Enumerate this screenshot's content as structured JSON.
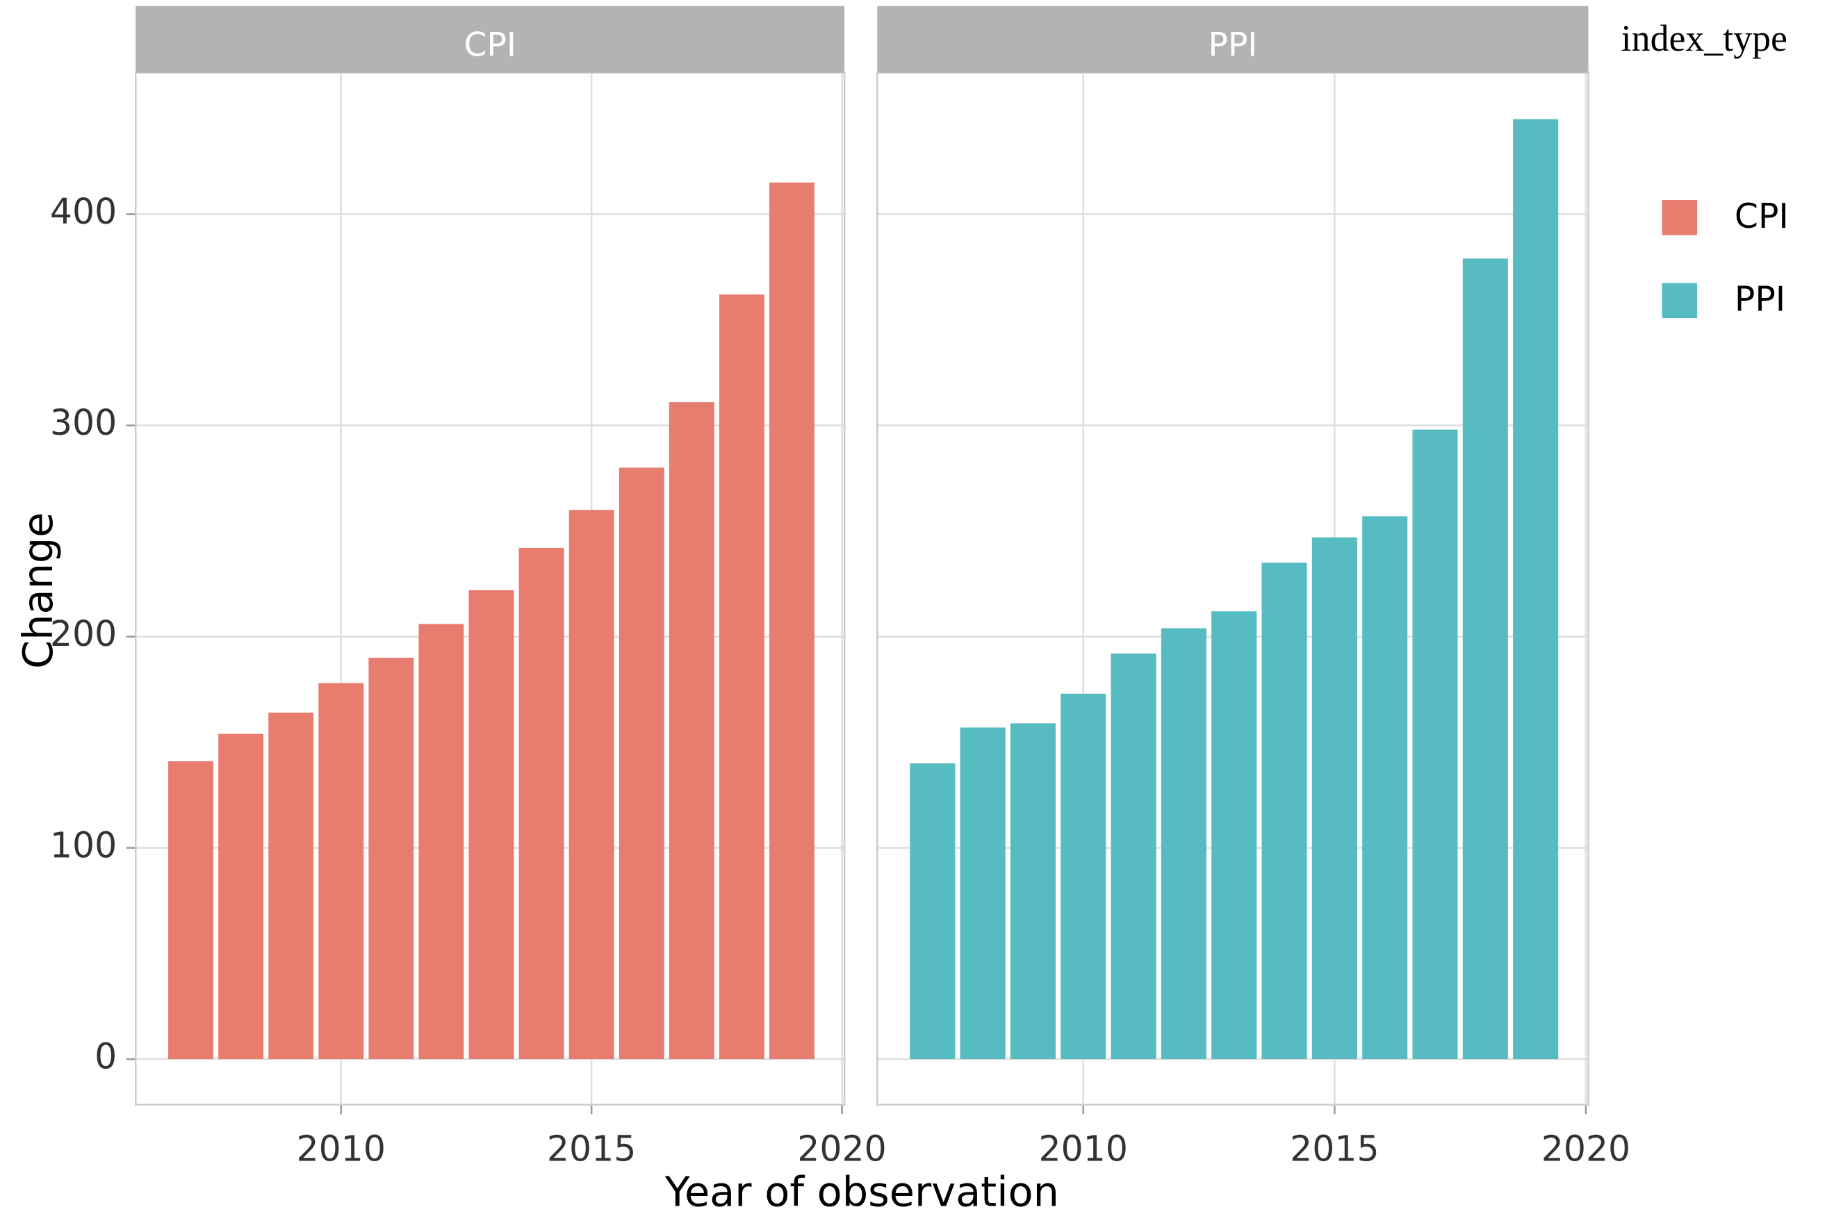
{
  "chart_data": {
    "type": "bar",
    "x_label": "Year of observation",
    "y_label": "Change",
    "legend_title": "index_type",
    "x": [
      2007,
      2008,
      2009,
      2010,
      2011,
      2012,
      2013,
      2014,
      2015,
      2016,
      2017,
      2018,
      2019
    ],
    "series": [
      {
        "name": "CPI",
        "color": "#e77c6f",
        "values": [
          141,
          154,
          164,
          178,
          190,
          206,
          222,
          242,
          260,
          280,
          311,
          362,
          415
        ]
      },
      {
        "name": "PPI",
        "color": "#56bcc2",
        "values": [
          140,
          157,
          159,
          173,
          192,
          204,
          212,
          235,
          247,
          257,
          298,
          379,
          445
        ]
      }
    ],
    "xlim": [
      2005.9,
      2020.05
    ],
    "xticks": [
      2010,
      2015,
      2020
    ],
    "ylim": [
      -21.6,
      467
    ],
    "yticks": [
      0,
      100,
      200,
      300,
      400
    ],
    "grid": true,
    "legend": "right"
  }
}
